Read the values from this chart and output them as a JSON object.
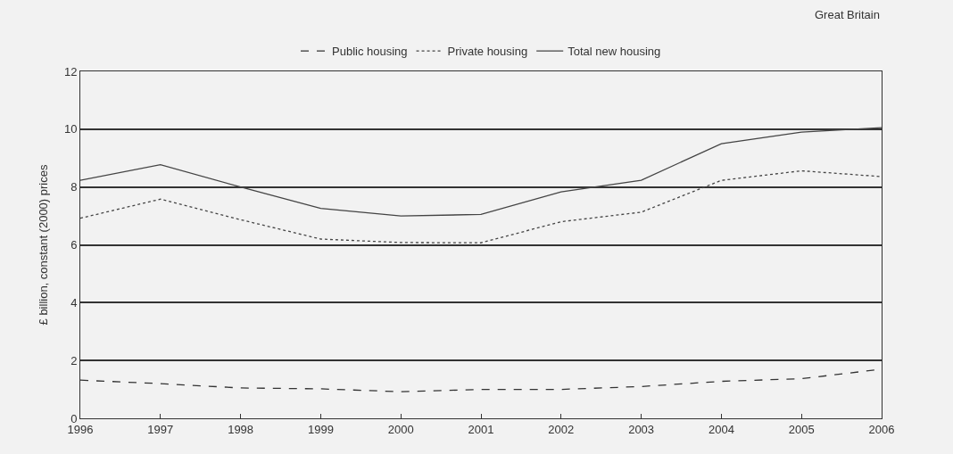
{
  "chart_data": {
    "type": "line",
    "ylabel": "£ billion, constant (2000) prices",
    "annotations": [
      "Great Britain"
    ],
    "x": [
      1996,
      1997,
      1998,
      1999,
      2000,
      2001,
      2002,
      2003,
      2004,
      2005,
      2006
    ],
    "xlim": [
      1996,
      2006
    ],
    "xticks": [
      1996,
      1997,
      1998,
      1999,
      2000,
      2001,
      2002,
      2003,
      2004,
      2005,
      2006
    ],
    "ylim": [
      0,
      12
    ],
    "yticks": [
      0,
      2,
      4,
      6,
      8,
      10,
      12
    ],
    "grid": "y",
    "legend": "top",
    "marker": "none",
    "series": [
      {
        "name": "Public housing",
        "color": "#333333",
        "line_style": "dashed",
        "values": [
          1.32,
          1.2,
          1.05,
          1.02,
          0.92,
          1.0,
          1.0,
          1.1,
          1.28,
          1.37,
          1.7
        ]
      },
      {
        "name": "Private housing",
        "color": "#444444",
        "line_style": "dotted",
        "values": [
          6.92,
          7.58,
          6.87,
          6.2,
          6.08,
          6.07,
          6.8,
          7.13,
          8.23,
          8.56,
          8.36
        ]
      },
      {
        "name": "Total new housing",
        "color": "#444444",
        "line_style": "solid",
        "values": [
          8.23,
          8.77,
          8.0,
          7.26,
          7.0,
          7.05,
          7.83,
          8.23,
          9.5,
          9.9,
          10.05
        ]
      }
    ]
  }
}
